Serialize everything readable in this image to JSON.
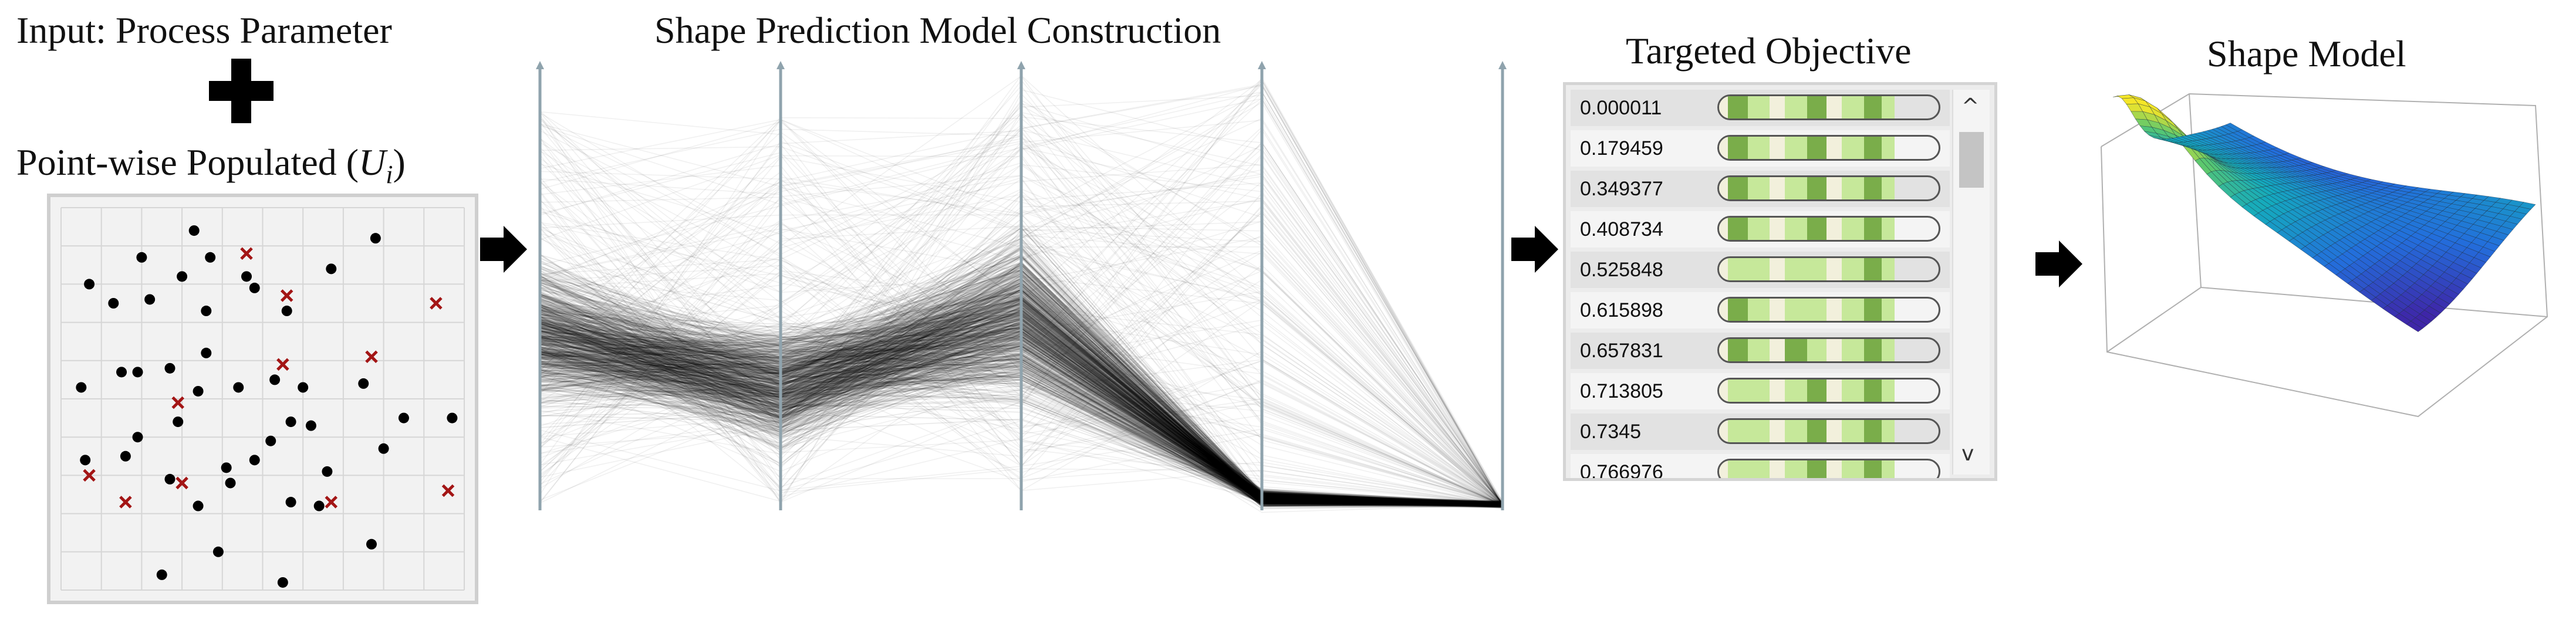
{
  "headings": {
    "input": "Input: Process Parameter",
    "pointwise": "Point-wise Populated (",
    "pointwise_var": "U",
    "pointwise_sub": "i",
    "pointwise_close": ")",
    "construction": "Shape Prediction Model Construction",
    "targeted": "Targeted Objective",
    "shape_model": "Shape Model"
  },
  "icons": [
    "plus-icon",
    "arrow-right-icon"
  ],
  "colors": {
    "dot": "#000000",
    "cross": "#a31515",
    "bar_dark": "#7aad4a",
    "bar_light": "#c6e89a",
    "bar_pale": "#f2f0dc"
  },
  "scatter": {
    "dots": [
      [
        0.33,
        0.06
      ],
      [
        0.78,
        0.08
      ],
      [
        0.2,
        0.13
      ],
      [
        0.37,
        0.13
      ],
      [
        0.3,
        0.18
      ],
      [
        0.67,
        0.16
      ],
      [
        0.07,
        0.2
      ],
      [
        0.46,
        0.18
      ],
      [
        0.22,
        0.24
      ],
      [
        0.13,
        0.25
      ],
      [
        0.48,
        0.21
      ],
      [
        0.36,
        0.27
      ],
      [
        0.56,
        0.27
      ],
      [
        0.36,
        0.38
      ],
      [
        0.15,
        0.43
      ],
      [
        0.19,
        0.43
      ],
      [
        0.27,
        0.42
      ],
      [
        0.05,
        0.47
      ],
      [
        0.34,
        0.48
      ],
      [
        0.44,
        0.47
      ],
      [
        0.53,
        0.45
      ],
      [
        0.6,
        0.47
      ],
      [
        0.75,
        0.46
      ],
      [
        0.29,
        0.56
      ],
      [
        0.57,
        0.56
      ],
      [
        0.62,
        0.57
      ],
      [
        0.85,
        0.55
      ],
      [
        0.19,
        0.6
      ],
      [
        0.52,
        0.61
      ],
      [
        0.97,
        0.55
      ],
      [
        0.16,
        0.65
      ],
      [
        0.8,
        0.63
      ],
      [
        0.06,
        0.66
      ],
      [
        0.41,
        0.68
      ],
      [
        0.48,
        0.66
      ],
      [
        0.66,
        0.69
      ],
      [
        0.42,
        0.72
      ],
      [
        0.27,
        0.71
      ],
      [
        0.64,
        0.78
      ],
      [
        0.34,
        0.78
      ],
      [
        0.57,
        0.77
      ],
      [
        0.39,
        0.9
      ],
      [
        0.77,
        0.88
      ],
      [
        0.25,
        0.96
      ],
      [
        0.55,
        0.98
      ]
    ],
    "crosses": [
      [
        0.46,
        0.12
      ],
      [
        0.56,
        0.23
      ],
      [
        0.93,
        0.25
      ],
      [
        0.55,
        0.41
      ],
      [
        0.77,
        0.39
      ],
      [
        0.29,
        0.51
      ],
      [
        0.07,
        0.7
      ],
      [
        0.16,
        0.77
      ],
      [
        0.3,
        0.72
      ],
      [
        0.67,
        0.77
      ],
      [
        0.96,
        0.74
      ]
    ]
  },
  "objective_list": {
    "values": [
      "0.000011",
      "0.179459",
      "0.349377",
      "0.408734",
      "0.525848",
      "0.615898",
      "0.657831",
      "0.713805",
      "0.7345",
      "0.766976"
    ],
    "patterns": [
      [
        "pale",
        "dark",
        "light",
        "pale",
        "light",
        "dark",
        "pale",
        "light",
        "dark",
        "light"
      ],
      [
        "pale",
        "dark",
        "light",
        "pale",
        "light",
        "dark",
        "pale",
        "light",
        "dark",
        "light"
      ],
      [
        "pale",
        "dark",
        "light",
        "pale",
        "light",
        "dark",
        "pale",
        "light",
        "dark",
        "light"
      ],
      [
        "pale",
        "dark",
        "light",
        "pale",
        "light",
        "dark",
        "pale",
        "light",
        "dark",
        "light"
      ],
      [
        "pale",
        "light",
        "light",
        "pale",
        "light",
        "light",
        "pale",
        "light",
        "dark",
        "light"
      ],
      [
        "pale",
        "dark",
        "light",
        "pale",
        "light",
        "light",
        "pale",
        "light",
        "dark",
        "light"
      ],
      [
        "pale",
        "dark",
        "light",
        "pale",
        "dark",
        "light",
        "pale",
        "light",
        "dark",
        "light"
      ],
      [
        "pale",
        "light",
        "light",
        "pale",
        "light",
        "dark",
        "pale",
        "light",
        "dark",
        "light"
      ],
      [
        "pale",
        "light",
        "light",
        "pale",
        "light",
        "dark",
        "pale",
        "light",
        "dark",
        "light"
      ],
      [
        "pale",
        "light",
        "light",
        "pale",
        "light",
        "dark",
        "pale",
        "light",
        "dark",
        "light"
      ]
    ],
    "scroll_up": "^",
    "scroll_down": "v"
  }
}
